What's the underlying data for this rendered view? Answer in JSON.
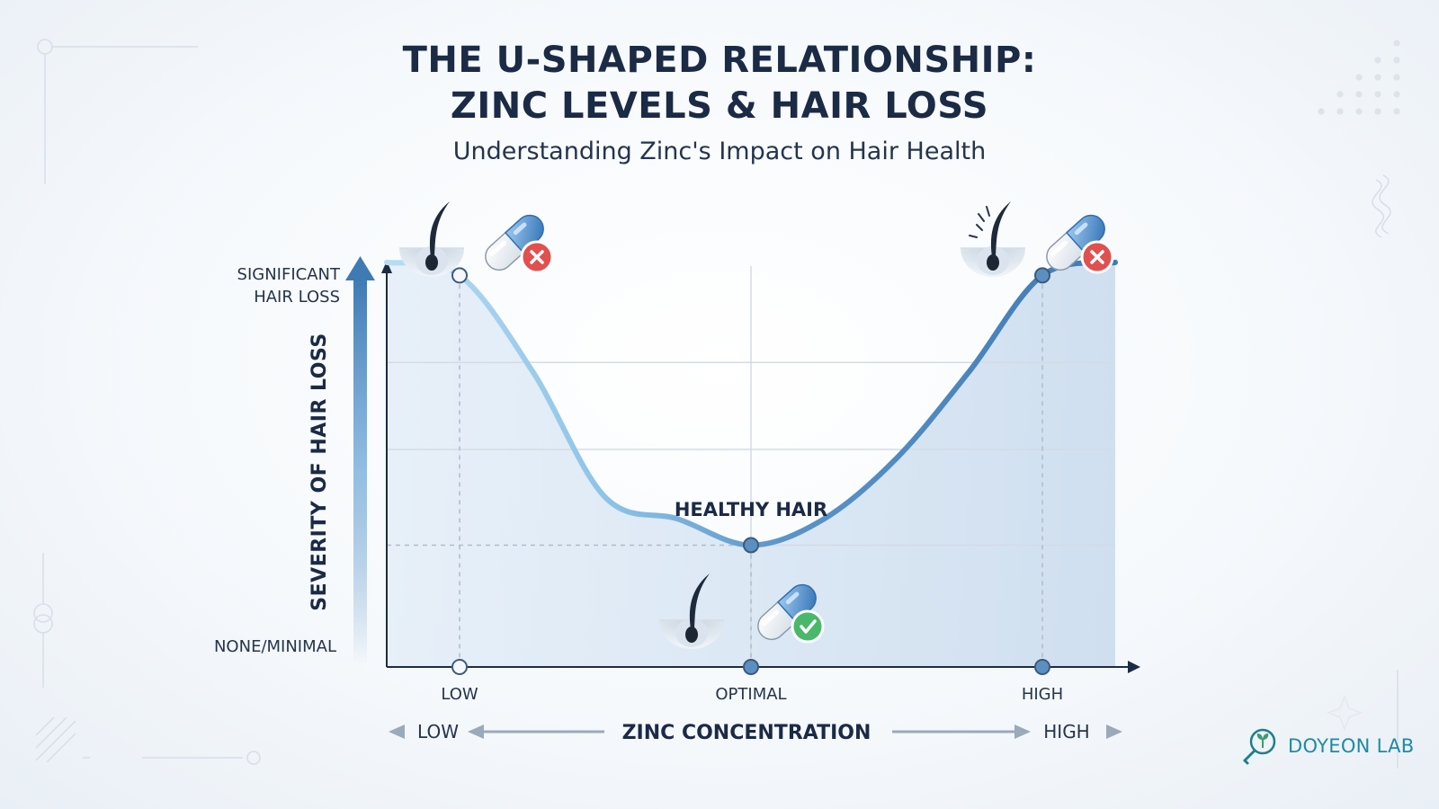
{
  "header": {
    "title_line1": "THE U-SHAPED RELATIONSHIP:",
    "title_line2": "ZINC LEVELS & HAIR LOSS",
    "subtitle": "Understanding Zinc's Impact on Hair Health"
  },
  "brand": {
    "name": "DOYEON LAB",
    "icon": "leaf-magnifier-icon"
  },
  "colors": {
    "curve": "#4a86be",
    "curve_light": "#9ecbe8",
    "fill": "#dbe6f1",
    "axis": "#1d2c44",
    "error": "#e0504f",
    "success": "#4ab86a",
    "capsule_blue": "#3f7fc1"
  },
  "chart_data": {
    "type": "line",
    "title": "THE U-SHAPED RELATIONSHIP: ZINC LEVELS & HAIR LOSS",
    "subtitle": "Understanding Zinc's Impact on Hair Health",
    "xlabel": "ZINC CONCENTRATION",
    "ylabel": "SEVERITY OF HAIR LOSS",
    "x_direction_labels": [
      "LOW",
      "HIGH"
    ],
    "x_ticks": [
      {
        "x": 0.1,
        "label": "LOW"
      },
      {
        "x": 0.5,
        "label": "OPTIMAL"
      },
      {
        "x": 0.9,
        "label": "HIGH"
      }
    ],
    "y_ticks": [
      {
        "y": 0.06,
        "label": "NONE/MINIMAL"
      },
      {
        "y": 0.95,
        "label": "SIGNIFICANT HAIR LOSS"
      }
    ],
    "xlim": [
      0,
      1
    ],
    "ylim": [
      0,
      1
    ],
    "grid": true,
    "series": [
      {
        "values": [
          {
            "x": 0.0,
            "y": 0.93
          },
          {
            "x": 0.1,
            "y": 0.9
          },
          {
            "x": 0.2,
            "y": 0.68
          },
          {
            "x": 0.3,
            "y": 0.39
          },
          {
            "x": 0.4,
            "y": 0.34
          },
          {
            "x": 0.5,
            "y": 0.28
          },
          {
            "x": 0.6,
            "y": 0.34
          },
          {
            "x": 0.7,
            "y": 0.48
          },
          {
            "x": 0.8,
            "y": 0.68
          },
          {
            "x": 0.9,
            "y": 0.9
          },
          {
            "x": 1.0,
            "y": 0.93
          }
        ]
      }
    ],
    "markers": [
      {
        "x": 0.1,
        "y": 0.9,
        "status": "deficient",
        "icons": [
          "hair-follicle-icon",
          "capsule-x-icon"
        ]
      },
      {
        "x": 0.5,
        "y": 0.28,
        "status": "optimal",
        "icons": [
          "hair-follicle-icon",
          "capsule-check-icon"
        ]
      },
      {
        "x": 0.9,
        "y": 0.9,
        "status": "excess",
        "icons": [
          "hair-follicle-icon",
          "capsule-x-icon"
        ]
      }
    ],
    "annotations": [
      {
        "x": 0.5,
        "y": 0.28,
        "text": "HEALTHY HAIR"
      }
    ]
  }
}
